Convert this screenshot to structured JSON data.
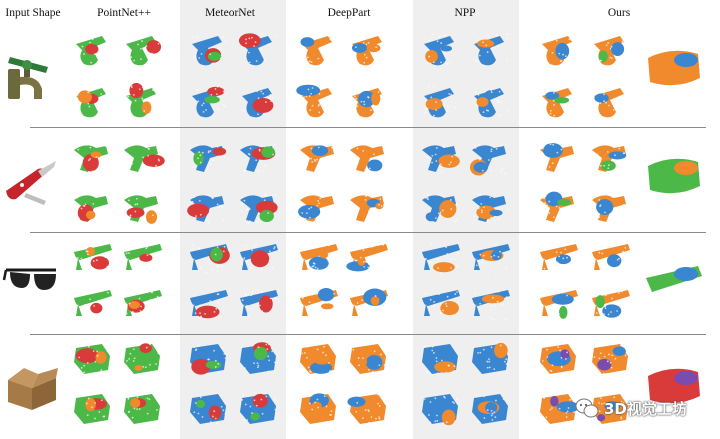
{
  "columns": {
    "input": "Input Shape",
    "pointnetpp": "PointNet++",
    "meteornet": "MeteorNet",
    "deeppart": "DeepPart",
    "npp": "NPP",
    "ours": "Ours"
  },
  "rows": [
    {
      "object": "faucet",
      "input_icon": "faucet-icon"
    },
    {
      "object": "pocket-knife",
      "input_icon": "pocket-knife-icon"
    },
    {
      "object": "eyeglasses",
      "input_icon": "eyeglasses-icon"
    },
    {
      "object": "cardboard-box",
      "input_icon": "cardboard-box-icon"
    }
  ],
  "colors": {
    "part_green": "#4cb848",
    "part_red": "#d93a3a",
    "part_orange": "#f08a2c",
    "part_blue": "#3a86d0",
    "part_purple": "#7a4cb0",
    "shade": "#efefef"
  },
  "watermark": {
    "icon": "wechat-icon",
    "text": "3D视觉工坊"
  }
}
